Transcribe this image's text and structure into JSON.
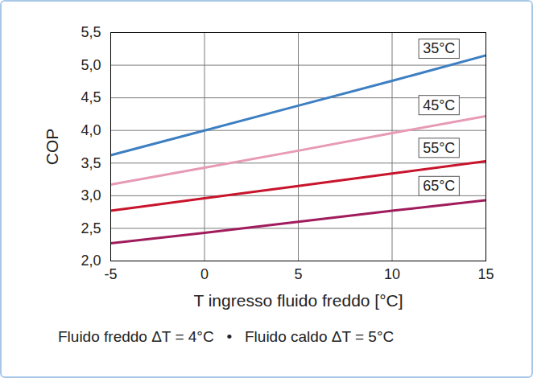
{
  "chart_data": {
    "type": "line",
    "xlabel": "T ingresso fluido freddo [°C]",
    "ylabel": "COP",
    "caption": "Fluido freddo ΔT = 4°C   •   Fluido caldo ΔT = 5°C",
    "x": [
      -5,
      0,
      5,
      10,
      15
    ],
    "series": [
      {
        "name": "35°C",
        "color": "#3d7fc2",
        "values": [
          3.62,
          4.0,
          4.38,
          4.76,
          5.15
        ]
      },
      {
        "name": "45°C",
        "color": "#e79ab6",
        "values": [
          3.17,
          3.43,
          3.69,
          3.96,
          4.22
        ]
      },
      {
        "name": "55°C",
        "color": "#c8142c",
        "values": [
          2.77,
          2.96,
          3.15,
          3.34,
          3.53
        ]
      },
      {
        "name": "65°C",
        "color": "#a01c5c",
        "values": [
          2.27,
          2.43,
          2.6,
          2.77,
          2.93
        ]
      }
    ],
    "xlim": [
      -5,
      15
    ],
    "xticks": [
      -5,
      0,
      5,
      10,
      15
    ],
    "ylim": [
      2,
      5.5
    ],
    "yticks": [
      {
        "value": 2,
        "label": "2,0"
      },
      {
        "value": 2.5,
        "label": "2,5"
      },
      {
        "value": 3,
        "label": "3,0"
      },
      {
        "value": 3.5,
        "label": "3,5"
      },
      {
        "value": 4,
        "label": "4,0"
      },
      {
        "value": 4.5,
        "label": "4,5"
      },
      {
        "value": 5,
        "label": "5,0"
      },
      {
        "value": 5.5,
        "label": "5,5"
      }
    ],
    "grid": true
  }
}
